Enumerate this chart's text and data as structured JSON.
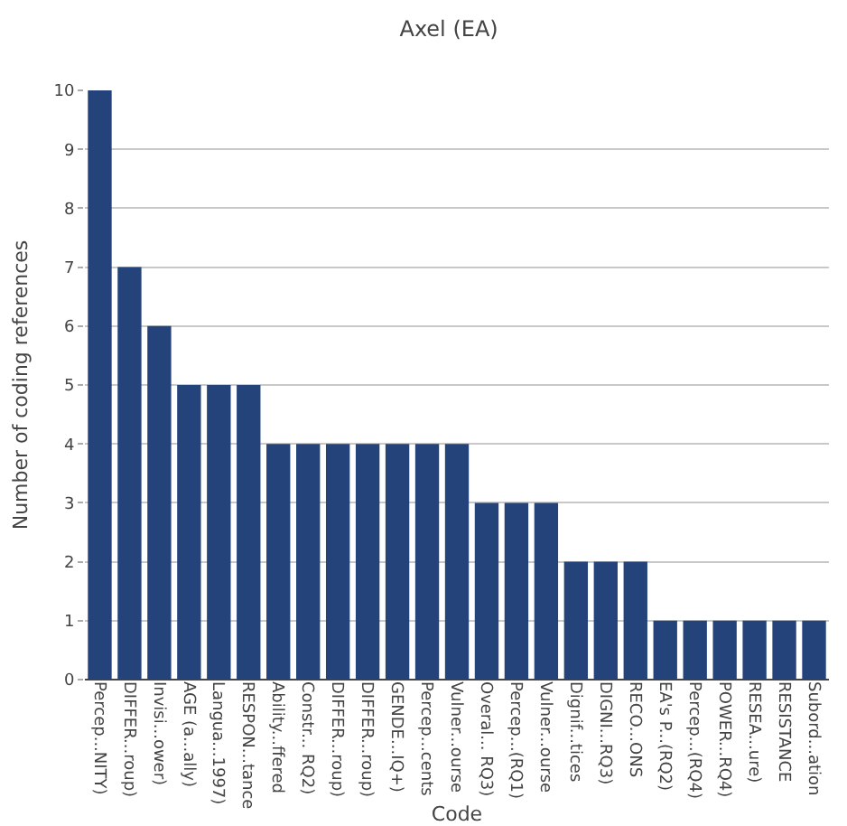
{
  "chart_data": {
    "type": "bar",
    "title": "Axel (EA)",
    "xlabel": "Code",
    "ylabel": "Number of coding references",
    "categories": [
      "Percep...NITY)",
      "DIFFER...roup)",
      "Invisi...ower)",
      "AGE (a...ally)",
      "Langua...1997)",
      "RESPON...tance",
      "Ability...ffered",
      "Constr... RQ2)",
      "DIFFER...roup)",
      "DIFFER...roup)",
      "GENDE...IQ+)",
      "Percep...cents",
      "Vulner...ourse",
      "Overal... RQ3)",
      "Percep...(RQ1)",
      "Vulner...ourse",
      "Dignif...tices",
      "DIGNI...RQ3)",
      "RECO...ONS",
      "EA's P...(RQ2)",
      "Percep...(RQ4)",
      "POWER...RQ4)",
      "RESEA...ure)",
      "RESISTANCE",
      "Subord...ation"
    ],
    "values": [
      10,
      7,
      6,
      5,
      5,
      5,
      4,
      4,
      4,
      4,
      4,
      4,
      4,
      3,
      3,
      3,
      2,
      2,
      2,
      1,
      1,
      1,
      1,
      1,
      1
    ],
    "color": "#24437a",
    "ylim": [
      0,
      10
    ],
    "yticks": [
      0,
      1,
      2,
      3,
      4,
      5,
      6,
      7,
      8,
      9,
      10
    ],
    "grid": "y"
  }
}
